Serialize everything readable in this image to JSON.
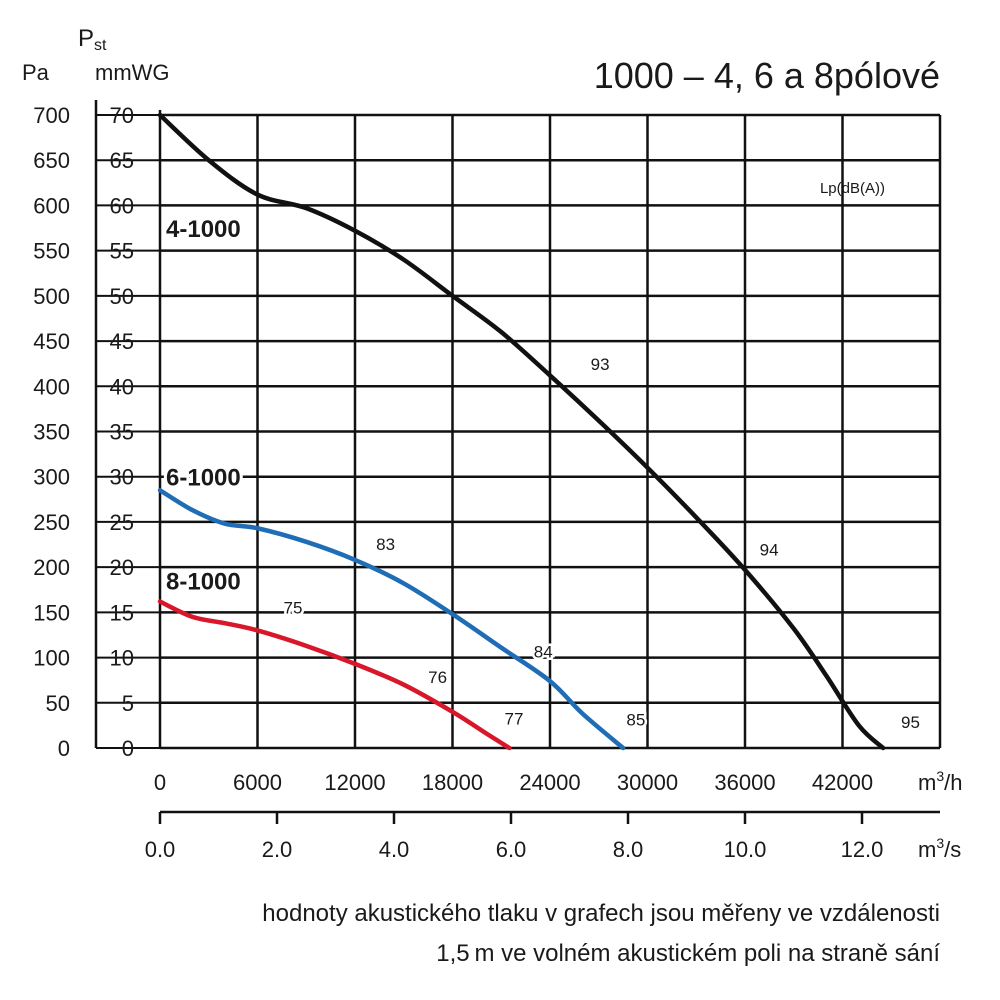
{
  "chart_data": {
    "type": "line",
    "title": "1000 – 4, 6 a 8pólové",
    "ylabel_left_unit": "Pa",
    "ylabel_main": "P",
    "ylabel_main_sub": "st",
    "ylabel_right_unit": "mmWG",
    "y_pa_ticks": [
      "0",
      "50",
      "100",
      "150",
      "200",
      "250",
      "300",
      "350",
      "400",
      "450",
      "500",
      "550",
      "600",
      "650",
      "700"
    ],
    "y_mmwg_ticks": [
      "0",
      "5",
      "10",
      "15",
      "20",
      "25",
      "30",
      "35",
      "40",
      "45",
      "50",
      "55",
      "60",
      "65",
      "70"
    ],
    "ylim_pa": [
      0,
      700
    ],
    "x_m3h_ticks": [
      "0",
      "6000",
      "12000",
      "18000",
      "24000",
      "30000",
      "36000",
      "42000"
    ],
    "x_m3h_unit": "m",
    "x_m3h_unit_sup": "3",
    "x_m3h_unit_tail": "/h",
    "x_m3s_ticks": [
      "0.0",
      "2.0",
      "4.0",
      "6.0",
      "8.0",
      "10.0",
      "12.0"
    ],
    "x_m3s_unit": "m",
    "x_m3s_unit_sup": "3",
    "x_m3s_unit_tail": "/s",
    "xlim_m3h": [
      0,
      48000
    ],
    "noise_label": "Lp(dB(A))",
    "grid": true,
    "series": [
      {
        "name": "4-1000",
        "color": "#111111",
        "points": [
          [
            0,
            700
          ],
          [
            3000,
            650
          ],
          [
            6000,
            612
          ],
          [
            9000,
            597
          ],
          [
            12000,
            572
          ],
          [
            15000,
            540
          ],
          [
            18000,
            500
          ],
          [
            21000,
            460
          ],
          [
            24000,
            412
          ],
          [
            27000,
            362
          ],
          [
            30000,
            310
          ],
          [
            33000,
            255
          ],
          [
            36000,
            197
          ],
          [
            39000,
            132
          ],
          [
            41000,
            80
          ],
          [
            43000,
            25
          ],
          [
            44500,
            0
          ]
        ],
        "noise_labels": [
          {
            "x": 26500,
            "y": 418,
            "text": "93"
          },
          {
            "x": 36900,
            "y": 213,
            "text": "94"
          },
          {
            "x": 45600,
            "y": 22,
            "text": "95"
          }
        ]
      },
      {
        "name": "6-1000",
        "color": "#1f6db5",
        "points": [
          [
            0,
            285
          ],
          [
            2000,
            263
          ],
          [
            4000,
            248
          ],
          [
            6000,
            243
          ],
          [
            9000,
            228
          ],
          [
            12000,
            208
          ],
          [
            15000,
            182
          ],
          [
            18000,
            148
          ],
          [
            21000,
            111
          ],
          [
            24000,
            74
          ],
          [
            26000,
            38
          ],
          [
            28500,
            0
          ]
        ],
        "noise_labels": [
          {
            "x": 13300,
            "y": 219,
            "text": "83"
          },
          {
            "x": 23000,
            "y": 100,
            "text": "84"
          },
          {
            "x": 28700,
            "y": 25,
            "text": "85"
          }
        ]
      },
      {
        "name": "8-1000",
        "color": "#d8182a",
        "points": [
          [
            0,
            162
          ],
          [
            2000,
            145
          ],
          [
            4000,
            138
          ],
          [
            6000,
            130
          ],
          [
            9000,
            113
          ],
          [
            12000,
            93
          ],
          [
            15000,
            70
          ],
          [
            18000,
            40
          ],
          [
            20000,
            17
          ],
          [
            21500,
            0
          ]
        ],
        "noise_labels": [
          {
            "x": 7600,
            "y": 149,
            "text": "75"
          },
          {
            "x": 16500,
            "y": 72,
            "text": "76"
          },
          {
            "x": 21200,
            "y": 26,
            "text": "77"
          }
        ]
      }
    ],
    "series_label_positions": [
      {
        "name": "4-1000",
        "x": 500,
        "y": 575
      },
      {
        "name": "6-1000",
        "x": 500,
        "y": 300
      },
      {
        "name": "8-1000",
        "x": 500,
        "y": 185
      }
    ]
  },
  "caption": {
    "line1": "hodnoty akustického tlaku v grafech jsou měřeny ve vzdálenosti",
    "line2": "1,5 m ve volném akustickém poli na straně sání"
  }
}
